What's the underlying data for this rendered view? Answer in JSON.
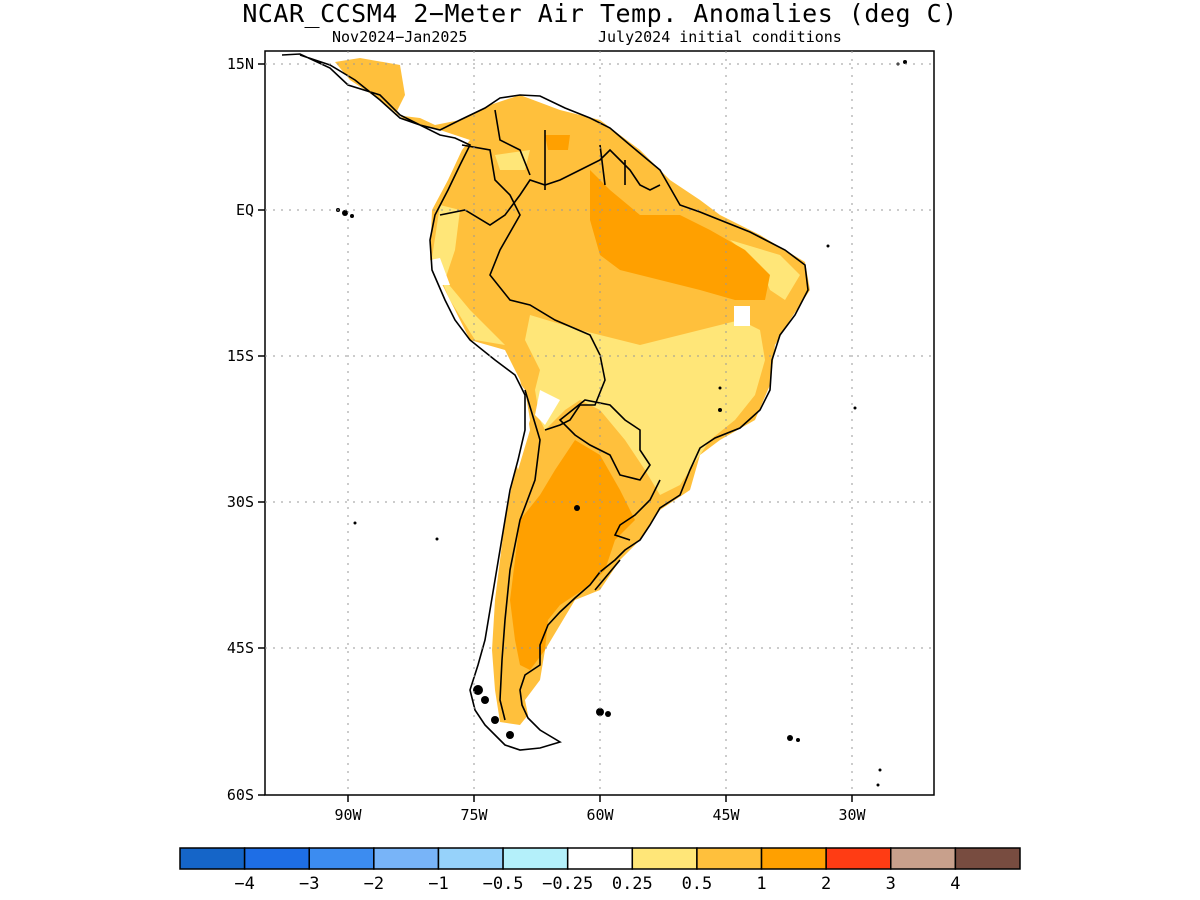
{
  "title": "NCAR_CCSM4 2−Meter Air Temp. Anomalies (deg C)",
  "subtitle_left": "Nov2024−Jan2025",
  "subtitle_right": "July2024 initial conditions",
  "lat_labels": [
    "15N",
    "EQ",
    "15S",
    "30S",
    "45S",
    "60S"
  ],
  "lon_labels": [
    "90W",
    "75W",
    "60W",
    "45W",
    "30W"
  ],
  "colorbar": {
    "colors": [
      "#1565c8",
      "#1e6ee6",
      "#3c8cf0",
      "#78b4f8",
      "#96d2fa",
      "#b4f0fa",
      "#ffffff",
      "#ffe678",
      "#ffc03c",
      "#ffa000",
      "#ff3c14",
      "#c8a08c",
      "#784c40"
    ],
    "labels": [
      "−4",
      "−3",
      "−2",
      "−1",
      "−0.5",
      "−0.25",
      "0.25",
      "0.5",
      "1",
      "2",
      "3",
      "4"
    ]
  },
  "map_colors": {
    "low_anomaly": "#ffe678",
    "mid_anomaly": "#ffc03c",
    "high_anomaly": "#ffa000",
    "neutral": "#ffffff"
  }
}
